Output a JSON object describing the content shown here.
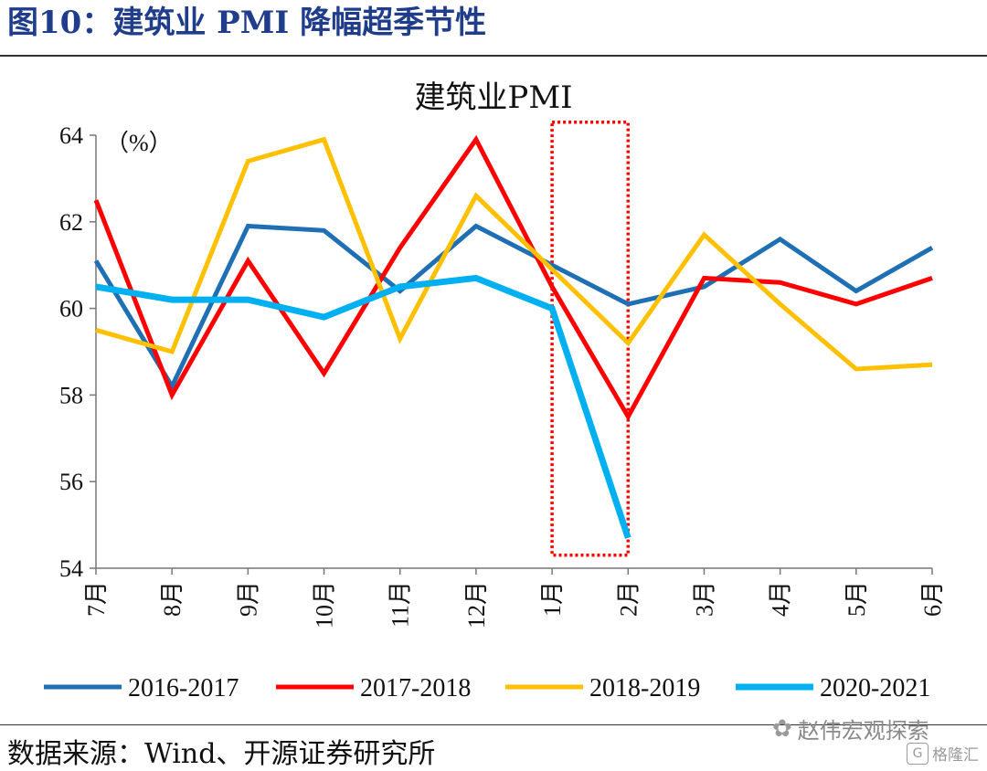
{
  "figure": {
    "header": "图10：建筑业 PMI 降幅超季节性",
    "source": "数据来源：Wind、开源证券研究所",
    "watermark": "赵伟宏观探索",
    "watermark2": "格隆汇",
    "watermark_icon": "wechat-icon",
    "watermark2_icon": "gelonghui-logo-icon"
  },
  "chart_data": {
    "type": "line",
    "title": "建筑业PMI",
    "ylabel": "（%）",
    "xlabel": "",
    "categories": [
      "7月",
      "8月",
      "9月",
      "10月",
      "11月",
      "12月",
      "1月",
      "2月",
      "3月",
      "4月",
      "5月",
      "6月"
    ],
    "ylim": [
      54,
      64
    ],
    "yticks": [
      54,
      56,
      58,
      60,
      62,
      64
    ],
    "grid": false,
    "legend_position": "bottom",
    "series": [
      {
        "name": "2016-2017",
        "color": "#1f6fb4",
        "width": 5,
        "values": [
          61.1,
          58.2,
          61.9,
          61.8,
          60.4,
          61.9,
          61.0,
          60.1,
          60.5,
          61.6,
          60.4,
          61.4
        ]
      },
      {
        "name": "2017-2018",
        "color": "#ff0000",
        "width": 5,
        "values": [
          62.5,
          58.0,
          61.1,
          58.5,
          61.4,
          63.9,
          60.5,
          57.5,
          60.7,
          60.6,
          60.1,
          60.7
        ]
      },
      {
        "name": "2018-2019",
        "color": "#ffc000",
        "width": 5,
        "values": [
          59.5,
          59.0,
          63.4,
          63.9,
          59.3,
          62.6,
          60.9,
          59.2,
          61.7,
          60.1,
          58.6,
          58.7
        ]
      },
      {
        "name": "2020-2021",
        "color": "#00b0f0",
        "width": 7,
        "values": [
          60.5,
          60.2,
          60.2,
          59.8,
          60.5,
          60.7,
          60.0,
          54.7,
          null,
          null,
          null,
          null
        ]
      }
    ],
    "annotations": [
      {
        "type": "dotted-box",
        "color": "#ff0000",
        "x_from": "1月",
        "x_to": "2月",
        "y_from": 54.3,
        "y_to": 64.3
      }
    ]
  }
}
